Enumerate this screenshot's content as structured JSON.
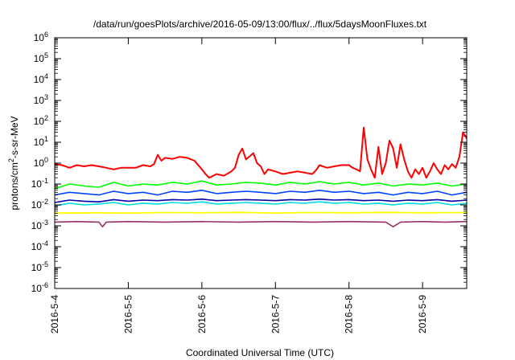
{
  "chart_data": {
    "type": "line",
    "title": "/data/run/goesPlots/archive/2016-05-09/13:00/flux/../flux/5daysMoonFluxes.txt",
    "xlabel": "Coordinated Universal Time (UTC)",
    "ylabel_parts": [
      "protons/cm",
      "2",
      "-s-sr-MeV"
    ],
    "yscale": "log",
    "ylim": [
      -6,
      6
    ],
    "xlim": [
      0,
      5.6
    ],
    "x_ticks": [
      {
        "x": 0,
        "label": "2016-5-4"
      },
      {
        "x": 1,
        "label": "2016-5-5"
      },
      {
        "x": 2,
        "label": "2016-5-6"
      },
      {
        "x": 3,
        "label": "2016-5-7"
      },
      {
        "x": 4,
        "label": "2016-5-8"
      },
      {
        "x": 5,
        "label": "2016-5-9"
      }
    ],
    "y_ticks": [
      {
        "exp": 6,
        "base": "10",
        "sup": "6"
      },
      {
        "exp": 5,
        "base": "10",
        "sup": "5"
      },
      {
        "exp": 4,
        "base": "10",
        "sup": "4"
      },
      {
        "exp": 3,
        "base": "10",
        "sup": "3"
      },
      {
        "exp": 2,
        "base": "10",
        "sup": "2"
      },
      {
        "exp": 1,
        "base": "10",
        "sup": "1"
      },
      {
        "exp": 0,
        "base": "10",
        "sup": "0"
      },
      {
        "exp": -1,
        "base": "10",
        "sup": "-1"
      },
      {
        "exp": -2,
        "base": "10",
        "sup": "-2"
      },
      {
        "exp": -3,
        "base": "10",
        "sup": "-3"
      },
      {
        "exp": -4,
        "base": "10",
        "sup": "-4"
      },
      {
        "exp": -5,
        "base": "10",
        "sup": "-5"
      },
      {
        "exp": -6,
        "base": "10",
        "sup": "-6"
      }
    ],
    "grid": false,
    "legend": "none",
    "series": [
      {
        "color": "#ff0000",
        "width": 2,
        "x": [
          0,
          0.1,
          0.2,
          0.3,
          0.4,
          0.5,
          0.6,
          0.7,
          0.8,
          0.9,
          1.0,
          1.1,
          1.2,
          1.3,
          1.35,
          1.4,
          1.45,
          1.5,
          1.6,
          1.7,
          1.8,
          1.9,
          2.0,
          2.05,
          2.1,
          2.2,
          2.3,
          2.4,
          2.45,
          2.5,
          2.55,
          2.6,
          2.7,
          2.75,
          2.8,
          2.85,
          2.9,
          3.0,
          3.1,
          3.2,
          3.3,
          3.4,
          3.5,
          3.55,
          3.6,
          3.7,
          3.8,
          3.9,
          4.0,
          4.05,
          4.1,
          4.15,
          4.2,
          4.25,
          4.3,
          4.35,
          4.4,
          4.45,
          4.5,
          4.55,
          4.6,
          4.65,
          4.7,
          4.75,
          4.8,
          4.85,
          4.9,
          4.95,
          5.0,
          5.05,
          5.1,
          5.15,
          5.2,
          5.25,
          5.3,
          5.35,
          5.4,
          5.45,
          5.5,
          5.55,
          5.6
        ],
        "y": [
          0.9,
          0.8,
          0.6,
          0.8,
          0.7,
          0.8,
          0.7,
          0.6,
          0.5,
          0.6,
          0.6,
          0.6,
          0.8,
          0.7,
          0.9,
          2.5,
          1.3,
          1.8,
          1.6,
          2.0,
          1.8,
          1.3,
          0.5,
          0.3,
          0.2,
          0.3,
          0.25,
          0.4,
          0.6,
          2.5,
          5.0,
          1.5,
          3.0,
          1.0,
          0.7,
          0.3,
          0.5,
          0.4,
          0.3,
          0.35,
          0.4,
          0.35,
          0.3,
          0.45,
          0.8,
          0.6,
          0.7,
          0.8,
          0.8,
          0.6,
          0.5,
          0.4,
          50.0,
          1.5,
          0.5,
          0.2,
          6.0,
          0.3,
          1.0,
          12.0,
          5.0,
          0.6,
          8.0,
          1.5,
          0.4,
          0.2,
          0.5,
          0.3,
          0.6,
          0.2,
          0.4,
          1.0,
          0.5,
          0.3,
          0.8,
          0.5,
          0.9,
          0.6,
          2.0,
          30.0,
          15.0
        ]
      },
      {
        "color": "#00ff00",
        "width": 1.6,
        "x": [
          0,
          0.2,
          0.4,
          0.6,
          0.8,
          1.0,
          1.2,
          1.4,
          1.6,
          1.8,
          2.0,
          2.2,
          2.4,
          2.6,
          2.8,
          3.0,
          3.2,
          3.4,
          3.6,
          3.8,
          4.0,
          4.2,
          4.4,
          4.6,
          4.8,
          5.0,
          5.2,
          5.4,
          5.6
        ],
        "y": [
          0.06,
          0.1,
          0.08,
          0.07,
          0.12,
          0.08,
          0.1,
          0.09,
          0.12,
          0.1,
          0.14,
          0.09,
          0.1,
          0.12,
          0.11,
          0.09,
          0.12,
          0.1,
          0.13,
          0.1,
          0.12,
          0.09,
          0.11,
          0.08,
          0.1,
          0.09,
          0.11,
          0.08,
          0.1
        ]
      },
      {
        "color": "#0044ff",
        "width": 1.6,
        "x": [
          0,
          0.2,
          0.4,
          0.6,
          0.8,
          1.0,
          1.2,
          1.4,
          1.6,
          1.8,
          2.0,
          2.2,
          2.4,
          2.6,
          2.8,
          3.0,
          3.2,
          3.4,
          3.6,
          3.8,
          4.0,
          4.2,
          4.4,
          4.6,
          4.8,
          5.0,
          5.2,
          5.4,
          5.6
        ],
        "y": [
          0.03,
          0.04,
          0.035,
          0.03,
          0.045,
          0.035,
          0.04,
          0.03,
          0.045,
          0.04,
          0.05,
          0.035,
          0.04,
          0.045,
          0.04,
          0.035,
          0.045,
          0.04,
          0.05,
          0.04,
          0.045,
          0.035,
          0.04,
          0.03,
          0.04,
          0.035,
          0.045,
          0.03,
          0.04
        ]
      },
      {
        "color": "#00dddd",
        "width": 1.6,
        "x": [
          0,
          0.2,
          0.4,
          0.6,
          0.8,
          1.0,
          1.2,
          1.4,
          1.6,
          1.8,
          2.0,
          2.2,
          2.4,
          2.6,
          2.8,
          3.0,
          3.2,
          3.4,
          3.6,
          3.8,
          4.0,
          4.2,
          4.4,
          4.6,
          4.8,
          5.0,
          5.2,
          5.4,
          5.6
        ],
        "y": [
          0.009,
          0.012,
          0.01,
          0.011,
          0.013,
          0.01,
          0.012,
          0.011,
          0.013,
          0.012,
          0.014,
          0.011,
          0.012,
          0.013,
          0.012,
          0.011,
          0.013,
          0.012,
          0.014,
          0.012,
          0.013,
          0.011,
          0.012,
          0.01,
          0.012,
          0.011,
          0.013,
          0.01,
          0.012
        ]
      },
      {
        "color": "#0000aa",
        "width": 1.6,
        "x": [
          0,
          0.2,
          0.4,
          0.6,
          0.8,
          1.0,
          1.2,
          1.4,
          1.6,
          1.8,
          2.0,
          2.2,
          2.4,
          2.6,
          2.8,
          3.0,
          3.2,
          3.4,
          3.6,
          3.8,
          4.0,
          4.2,
          4.4,
          4.6,
          4.8,
          5.0,
          5.2,
          5.4,
          5.6
        ],
        "y": [
          0.013,
          0.017,
          0.015,
          0.014,
          0.018,
          0.015,
          0.017,
          0.016,
          0.018,
          0.017,
          0.019,
          0.016,
          0.017,
          0.018,
          0.017,
          0.016,
          0.018,
          0.017,
          0.019,
          0.017,
          0.018,
          0.016,
          0.017,
          0.015,
          0.017,
          0.016,
          0.018,
          0.015,
          0.017
        ]
      },
      {
        "color": "#ffff00",
        "width": 1.8,
        "x": [
          0,
          0.5,
          1.0,
          1.5,
          2.0,
          2.5,
          3.0,
          3.5,
          4.0,
          4.5,
          5.0,
          5.6
        ],
        "y": [
          0.004,
          0.0042,
          0.0041,
          0.0043,
          0.0042,
          0.0044,
          0.0041,
          0.0043,
          0.0042,
          0.0044,
          0.0042,
          0.0043
        ]
      },
      {
        "color": "#993366",
        "width": 1.6,
        "x": [
          0,
          0.3,
          0.6,
          0.65,
          0.7,
          1.0,
          1.5,
          2.0,
          2.5,
          3.0,
          3.5,
          4.0,
          4.5,
          4.6,
          4.7,
          5.0,
          5.3,
          5.6
        ],
        "y": [
          0.0015,
          0.0016,
          0.0015,
          0.0009,
          0.0015,
          0.0016,
          0.0015,
          0.0016,
          0.0015,
          0.0016,
          0.0015,
          0.0016,
          0.0015,
          0.0009,
          0.0015,
          0.0016,
          0.0015,
          0.0016
        ]
      }
    ]
  }
}
